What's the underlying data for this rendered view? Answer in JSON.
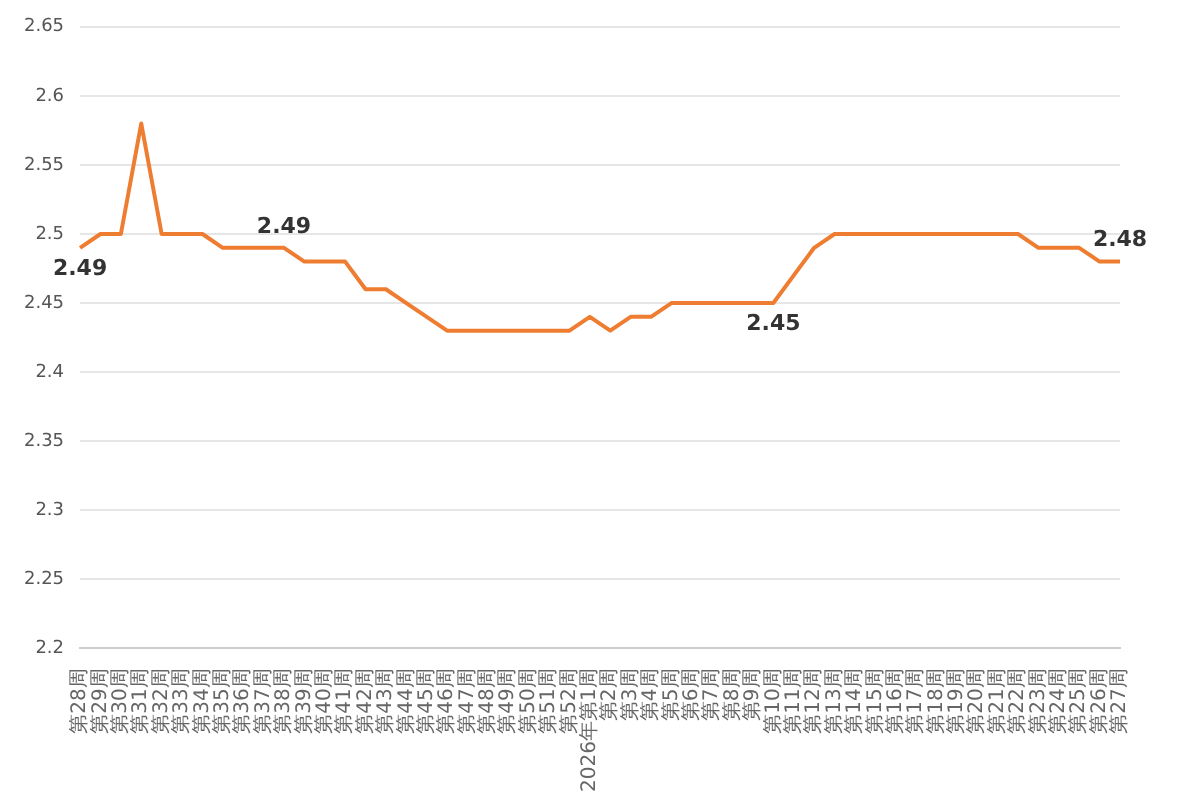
{
  "chart_data": {
    "type": "line",
    "categories": [
      "第28周",
      "第29周",
      "第30周",
      "第31周",
      "第32周",
      "第33周",
      "第34周",
      "第35周",
      "第36周",
      "第37周",
      "第38周",
      "第39周",
      "第40周",
      "第41周",
      "第42周",
      "第43周",
      "第44周",
      "第45周",
      "第46周",
      "第47周",
      "第48周",
      "第49周",
      "第50周",
      "第51周",
      "第52周",
      "2026年第1周",
      "第2周",
      "第3周",
      "第4周",
      "第5周",
      "第6周",
      "第7周",
      "第8周",
      "第9周",
      "第10周",
      "第11周",
      "第12周",
      "第13周",
      "第14周",
      "第15周",
      "第16周",
      "第17周",
      "第18周",
      "第19周",
      "第20周",
      "第21周",
      "第22周",
      "第23周",
      "第24周",
      "第25周",
      "第26周",
      "第27周"
    ],
    "series": [
      {
        "color": "#ef7d31",
        "values": [
          2.49,
          2.5,
          2.5,
          2.58,
          2.5,
          2.5,
          2.5,
          2.49,
          2.49,
          2.49,
          2.49,
          2.48,
          2.48,
          2.48,
          2.46,
          2.46,
          2.45,
          2.44,
          2.43,
          2.43,
          2.43,
          2.43,
          2.43,
          2.43,
          2.43,
          2.44,
          2.43,
          2.44,
          2.44,
          2.45,
          2.45,
          2.45,
          2.45,
          2.45,
          2.45,
          2.47,
          2.49,
          2.5,
          2.5,
          2.5,
          2.5,
          2.5,
          2.5,
          2.5,
          2.5,
          2.5,
          2.5,
          2.49,
          2.49,
          2.49,
          2.48,
          2.48
        ],
        "value_labels": [
          "2.49",
          null,
          null,
          null,
          null,
          null,
          null,
          null,
          null,
          null,
          "2.49",
          null,
          null,
          null,
          null,
          null,
          null,
          null,
          null,
          null,
          null,
          null,
          null,
          null,
          null,
          null,
          null,
          null,
          null,
          null,
          null,
          null,
          null,
          null,
          "2.45",
          null,
          null,
          null,
          null,
          null,
          null,
          null,
          null,
          null,
          null,
          null,
          null,
          null,
          null,
          null,
          null,
          "2.48"
        ]
      }
    ],
    "ylim": [
      2.2,
      2.65
    ],
    "yticks": [
      2.2,
      2.25,
      2.3,
      2.35,
      2.4,
      2.45,
      2.5,
      2.55,
      2.6,
      2.65
    ],
    "grid": "y",
    "legend": false,
    "marker": "none",
    "line_style": "solid"
  }
}
